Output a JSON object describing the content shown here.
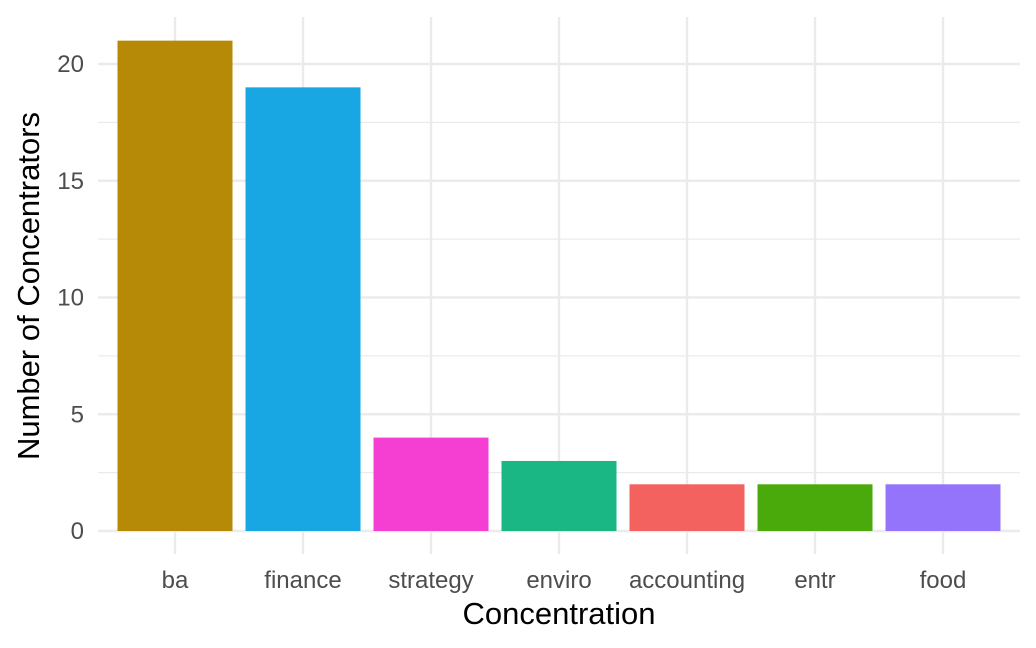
{
  "chart_data": {
    "type": "bar",
    "title": "",
    "xlabel": "Concentration",
    "ylabel": "Number of Concentrators",
    "categories": [
      "ba",
      "finance",
      "strategy",
      "enviro",
      "accounting",
      "entr",
      "food"
    ],
    "values": [
      21,
      19,
      4,
      3,
      2,
      2,
      2
    ],
    "colors": [
      "#B68A06",
      "#19A7E4",
      "#F53FD3",
      "#1AB784",
      "#F3625F",
      "#4AAA0B",
      "#9574FC"
    ],
    "ylim": [
      0,
      21
    ],
    "yticks": [
      0,
      5,
      10,
      15,
      20
    ],
    "ytick_labels": [
      "0",
      "5",
      "10",
      "15",
      "20"
    ],
    "grid": true,
    "legend": "none",
    "theme": "minimal"
  }
}
